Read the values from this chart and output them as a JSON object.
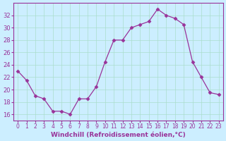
{
  "x": [
    0,
    1,
    2,
    3,
    4,
    5,
    6,
    7,
    8,
    9,
    10,
    11,
    12,
    13,
    14,
    15,
    16,
    17,
    18,
    19,
    20,
    21,
    22,
    23
  ],
  "y": [
    23.0,
    21.5,
    19.0,
    18.5,
    16.5,
    16.5,
    16.0,
    18.5,
    18.5,
    20.5,
    24.5,
    28.0,
    28.0,
    30.0,
    30.5,
    31.0,
    33.0,
    32.0,
    31.5,
    30.5,
    24.5,
    22.0,
    19.5,
    19.2
  ],
  "line_color": "#993399",
  "marker_color": "#993399",
  "bg_color": "#cceeff",
  "grid_color": "#aaddcc",
  "xlabel": "Windchill (Refroidissement éolien,°C)",
  "ylim": [
    15,
    34
  ],
  "xlim": [
    -0.5,
    23.5
  ],
  "yticks": [
    16,
    18,
    20,
    22,
    24,
    26,
    28,
    30,
    32
  ],
  "xticks": [
    0,
    1,
    2,
    3,
    4,
    5,
    6,
    7,
    8,
    9,
    10,
    11,
    12,
    13,
    14,
    15,
    16,
    17,
    18,
    19,
    20,
    21,
    22,
    23
  ],
  "tick_color": "#993399",
  "label_fontsize": 6.5,
  "tick_fontsize": 5.5
}
